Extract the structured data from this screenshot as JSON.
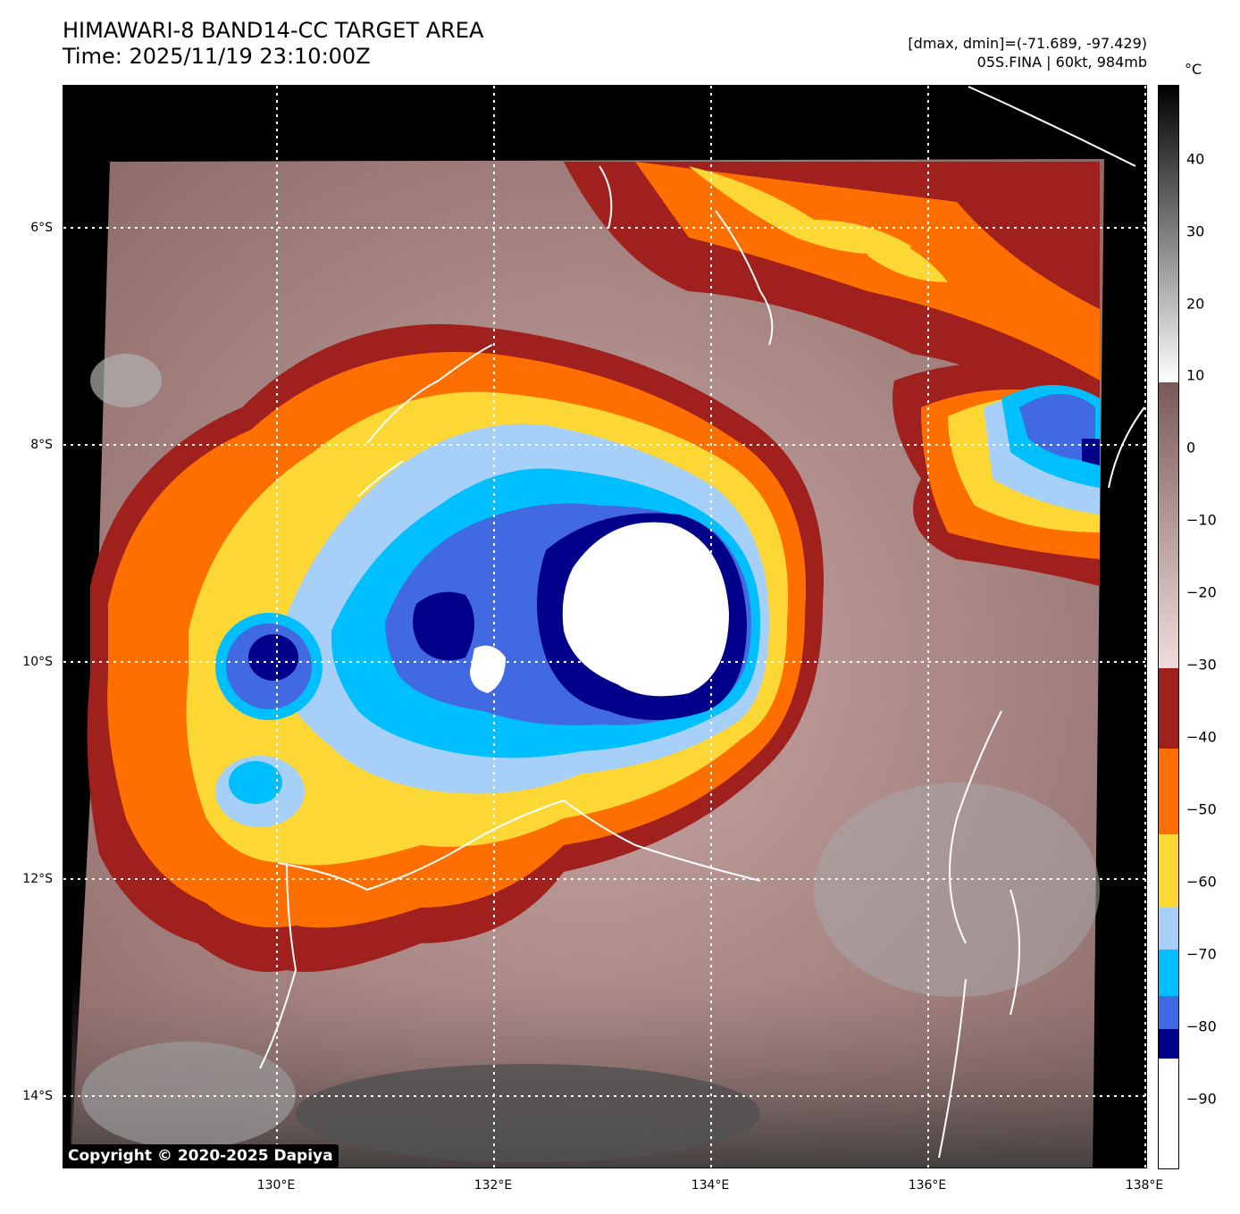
{
  "header": {
    "title_line1": "HIMAWARI-8 BAND14-CC TARGET AREA",
    "title_line2": "Time: 2025/11/19 23:10:00Z",
    "info_line1": "[dmax, dmin]=(-71.689, -97.429)",
    "info_line2": "05S.FINA | 60kt, 984mb"
  },
  "map": {
    "lat_labels": [
      "6°S",
      "8°S",
      "10°S",
      "12°S",
      "14°S"
    ],
    "lon_labels": [
      "130°E",
      "132°E",
      "134°E",
      "136°E",
      "138°E"
    ],
    "copyright": "Copyright © 2020-2025 Dapiya"
  },
  "colorbar": {
    "unit": "°C",
    "ticks": [
      "40",
      "30",
      "20",
      "10",
      "0",
      "−10",
      "−20",
      "−30",
      "−40",
      "−50",
      "−60",
      "−70",
      "−80",
      "−90"
    ],
    "colors": {
      "c_above_minus30": "#a88a88",
      "c_minus30_40": "#a0201e",
      "c_minus40_50": "#ff6f00",
      "c_minus50_60": "#fdd835",
      "c_minus60_65": "#a6d0f7",
      "c_minus65_75": "#00bfff",
      "c_minus75_80": "#4169e1",
      "c_minus80_85": "#00008b",
      "c_below_minus85": "#ffffff"
    }
  }
}
